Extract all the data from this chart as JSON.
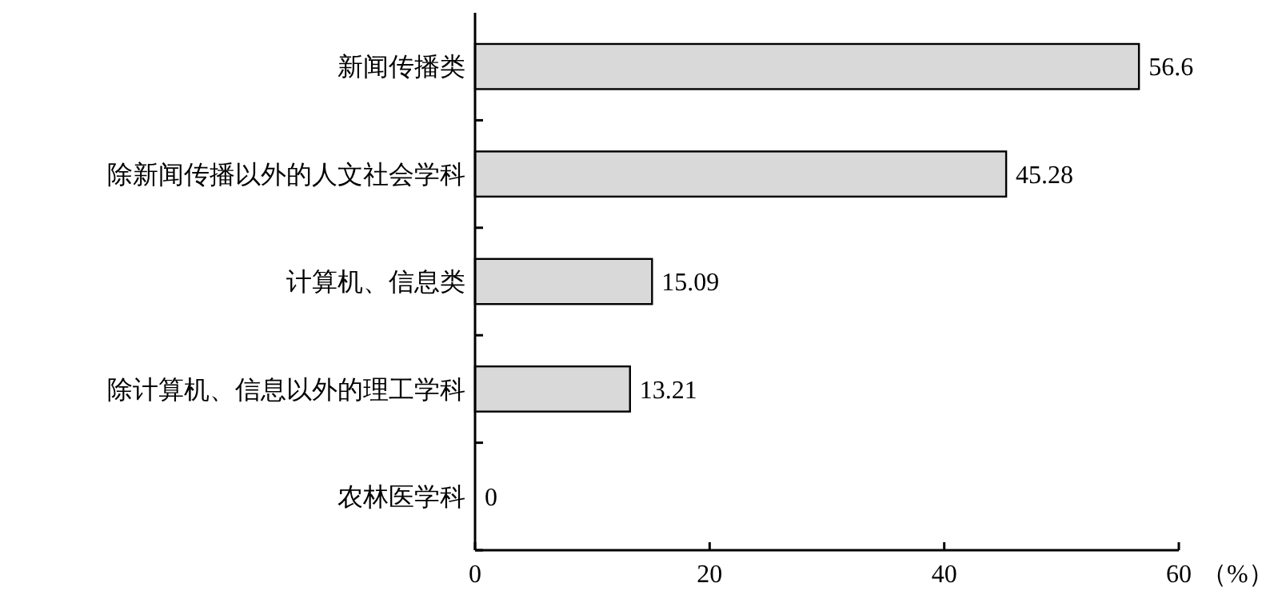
{
  "chart_data": {
    "type": "bar",
    "orientation": "horizontal",
    "categories": [
      "新闻传播类",
      "除新闻传播以外的人文社会学科",
      "计算机、信息类",
      "除计算机、信息以外的理工学科",
      "农林医学科"
    ],
    "values": [
      56.6,
      45.28,
      15.09,
      13.21,
      0
    ],
    "color": "#d9d9d9",
    "xlim": [
      0,
      60
    ],
    "xticks": [
      0,
      20,
      40,
      60
    ],
    "xlabel": "（%）",
    "data_labels": true,
    "grid": false
  }
}
